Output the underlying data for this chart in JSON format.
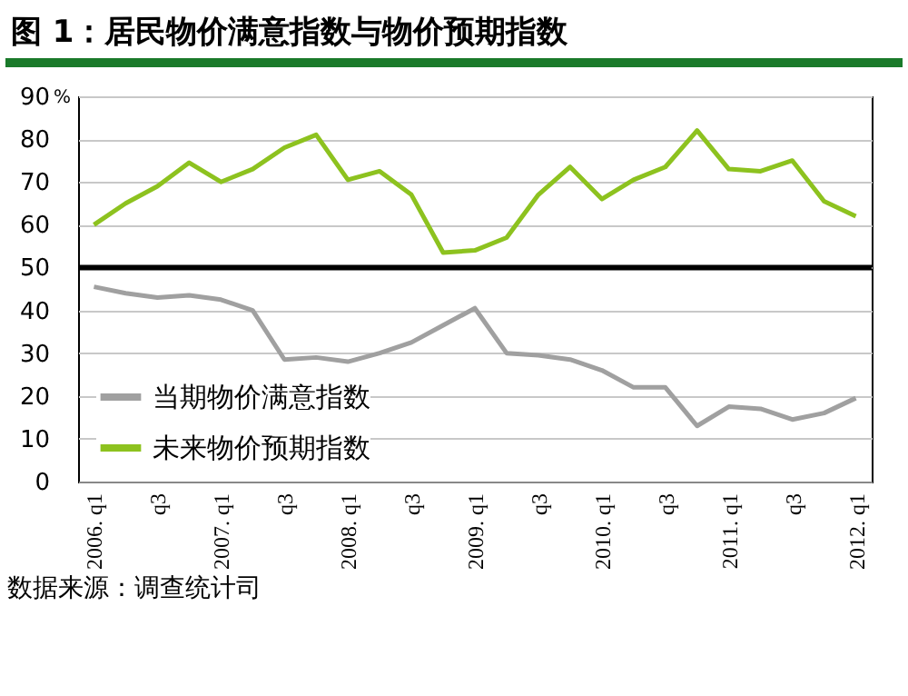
{
  "chart_data": {
    "type": "line",
    "title": "图 1：居民物价满意指数与物价预期指数",
    "ylabel": "%",
    "categories": [
      "2006. q1",
      null,
      "q3",
      null,
      "2007. q1",
      null,
      "q3",
      null,
      "2008. q1",
      null,
      "q3",
      null,
      "2009. q1",
      null,
      "q3",
      null,
      "2010. q1",
      null,
      "q3",
      null,
      "2011. q1",
      null,
      "q3",
      null,
      "2012. q1"
    ],
    "series": [
      {
        "name": "当期物价满意指数",
        "color": "#a0a0a0",
        "values": [
          45.5,
          44,
          43,
          43.5,
          42.5,
          40,
          28.5,
          29,
          28,
          30,
          32.5,
          36.5,
          40.5,
          30,
          29.5,
          28.5,
          26,
          22,
          22,
          13,
          17.5,
          17,
          14.5,
          16,
          19.5
        ]
      },
      {
        "name": "未来物价预期指数",
        "color": "#8dc21f",
        "values": [
          60,
          65,
          69,
          74.5,
          70,
          73,
          78,
          81,
          70.5,
          72.5,
          67,
          53.5,
          54,
          57,
          67,
          73.5,
          66,
          70.5,
          73.5,
          82,
          73,
          72.5,
          75,
          65.5,
          62
        ]
      }
    ],
    "ylim": [
      0,
      90
    ],
    "yticks": [
      0,
      10,
      20,
      30,
      40,
      50,
      60,
      70,
      80,
      90
    ],
    "grid": "y",
    "legend": "bottom left",
    "ref_lines": [
      {
        "axis": "y",
        "value": 50,
        "color": "#000000"
      }
    ],
    "annotations": [
      "数据来源：调查统计司"
    ]
  }
}
